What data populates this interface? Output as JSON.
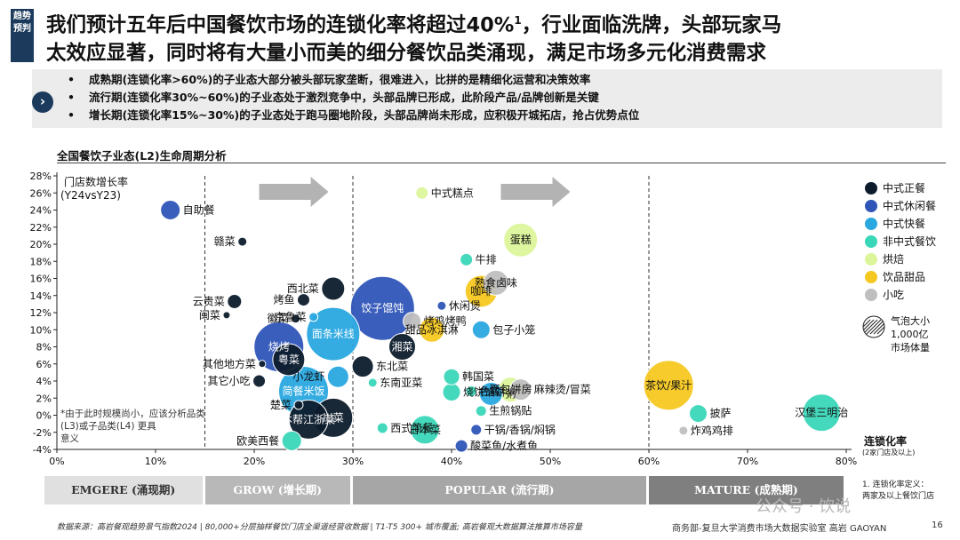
{
  "header": {
    "tag": "趋势预判",
    "title_line1": "我们预计五年后中国餐饮市场的连锁化率将超过40%",
    "title_sup": "1",
    "title_line1_tail": "，行业面临洗牌，头部玩家马",
    "title_line2": "太效应显著，同时将有大量小而美的细分餐饮品类涌现，满足市场多元化消费需求"
  },
  "bullets": [
    "成熟期(连锁化率>60%)的子业态大部分被头部玩家垄断，很难进入，比拼的是精细化运营和决策效率",
    "流行期(连锁化率30%~60%)的子业态处于激烈竞争中，头部品牌已形成，此阶段产品/品牌创新是关键",
    "增长期(连锁化率15%~30%)的子业态处于跑马圈地阶段，头部品牌尚未形成，应积极开城拓店，抢占优势点位"
  ],
  "chart_title": "全国餐饮子业态(L2)生命周期分析",
  "phases": [
    {
      "label": "EMGERE (涌现期)",
      "color": "#e0e0e0",
      "text_color": "#333333"
    },
    {
      "label": "GROW (增长期)",
      "color": "#b8b8b8",
      "text_color": "#ffffff"
    },
    {
      "label": "POPULAR (流行期)",
      "color": "#a6a6a6",
      "text_color": "#ffffff"
    },
    {
      "label": "MATURE (成熟期)",
      "color": "#7f7f7f",
      "text_color": "#ffffff"
    }
  ],
  "footer": {
    "source": "数据来源：高岩餐观趋势景气指数2024 | 80,000+分层抽样餐饮门店全渠道经营收数据 | T1-T5 300+ 城市覆盖; 高岩餐观大数据算法推算市场容量",
    "org": "商务部-复旦大学消费市场大数据实验室  高岩 GAOYAN",
    "page": "16",
    "def_note_1": "1. 连锁化率定义：",
    "def_note_2": "两家及以上餐饮门店",
    "watermark": "公众号 · 饮说"
  },
  "chart_data": {
    "type": "scatter",
    "title": "全国餐饮子业态(L2)生命周期分析",
    "xlabel": "连锁化率",
    "xlabel_sub": "(2家门店及以上)",
    "ylabel_1": "门店数增长率",
    "ylabel_2": "(Y24vsY23)",
    "xlim": [
      0,
      80
    ],
    "ylim": [
      -4,
      28
    ],
    "xticks": [
      "0%",
      "10%",
      "20%",
      "30%",
      "40%",
      "50%",
      "60%",
      "70%",
      "80%"
    ],
    "yticks": [
      "-4%",
      "-2%",
      "0%",
      "2%",
      "4%",
      "6%",
      "8%",
      "10%",
      "12%",
      "14%",
      "16%",
      "18%",
      "20%",
      "22%",
      "24%",
      "26%",
      "28%"
    ],
    "phase_lines_x": [
      15,
      30,
      60
    ],
    "size_legend": "气泡大小 1,000亿 市场体量",
    "footnote": "*由于此时规模尚小，应该分析品类(L3)或子品类(L4) 更具意义",
    "categories": [
      {
        "name": "中式正餐",
        "color": "#0d1c2c"
      },
      {
        "name": "中式休闲餐",
        "color": "#2f55b8"
      },
      {
        "name": "中式快餐",
        "color": "#29a8e0"
      },
      {
        "name": "非中式餐饮",
        "color": "#3ad6b8"
      },
      {
        "name": "烘焙",
        "color": "#dcf59a"
      },
      {
        "name": "饮品甜品",
        "color": "#f5c820"
      },
      {
        "name": "小吃",
        "color": "#bfbfbf"
      }
    ],
    "points": [
      {
        "label": "自助餐",
        "cat": 1,
        "x": 11.5,
        "y": 24,
        "r": 11
      },
      {
        "label": "中式糕点",
        "cat": 4,
        "x": 37,
        "y": 26,
        "r": 7
      },
      {
        "label": "蛋糕",
        "cat": 4,
        "x": 47,
        "y": 20.5,
        "r": 19
      },
      {
        "label": "牛排",
        "cat": 3,
        "x": 41.5,
        "y": 18.2,
        "r": 7
      },
      {
        "label": "休闲煲",
        "cat": 1,
        "x": 39,
        "y": 12.8,
        "r": 5
      },
      {
        "label": "饺子馄饨",
        "cat": 1,
        "x": 33,
        "y": 12.5,
        "r": 36
      },
      {
        "label": "烤鸡烤鸭",
        "cat": 6,
        "x": 36,
        "y": 11,
        "r": 10
      },
      {
        "label": "熟食卤味",
        "cat": 6,
        "x": 44.5,
        "y": 15.5,
        "r": 14
      },
      {
        "label": "咖啡",
        "cat": 5,
        "x": 43,
        "y": 14.5,
        "r": 18
      },
      {
        "label": "包子小笼",
        "cat": 2,
        "x": 43,
        "y": 10,
        "r": 10
      },
      {
        "label": "甜品冰淇淋",
        "cat": 5,
        "x": 38,
        "y": 10,
        "r": 14
      },
      {
        "label": "湘菜",
        "cat": 0,
        "x": 35,
        "y": 8,
        "r": 15
      },
      {
        "label": "东北菜",
        "cat": 0,
        "x": 31,
        "y": 5.7,
        "r": 12
      },
      {
        "label": "韩国菜",
        "cat": 3,
        "x": 40,
        "y": 4.5,
        "r": 9
      },
      {
        "label": "色拉",
        "cat": 3,
        "x": 42,
        "y": 2.8,
        "r": 6
      },
      {
        "label": "粥",
        "cat": 2,
        "x": 44,
        "y": 2.5,
        "r": 13
      },
      {
        "label": "面包饼房",
        "cat": 4,
        "x": 46,
        "y": 3,
        "r": 14
      },
      {
        "label": "麻辣烫/冒菜",
        "cat": 6,
        "x": 47,
        "y": 3,
        "r": 12
      },
      {
        "label": "东南亚菜",
        "cat": 3,
        "x": 32,
        "y": 3.8,
        "r": 5
      },
      {
        "label": "烧饼馅饼",
        "cat": 3,
        "x": 40,
        "y": 2.7,
        "r": 10
      },
      {
        "label": "川菜",
        "cat": 0,
        "x": 28,
        "y": -0.3,
        "r": 22
      },
      {
        "label": "日本菜",
        "cat": 3,
        "x": 37.3,
        "y": -1.7,
        "r": 16
      },
      {
        "label": "生煎锅贴",
        "cat": 3,
        "x": 43,
        "y": 0.5,
        "r": 6
      },
      {
        "label": "干锅/香锅/焖锅",
        "cat": 1,
        "x": 42.5,
        "y": -1.7,
        "r": 6
      },
      {
        "label": "西式简餐",
        "cat": 3,
        "x": 33,
        "y": -1.5,
        "r": 6
      },
      {
        "label": "酸菜鱼/水煮鱼",
        "cat": 1,
        "x": 41,
        "y": -3.6,
        "r": 7
      },
      {
        "label": "本帮江浙菜",
        "cat": 0,
        "x": 25.5,
        "y": -0.5,
        "r": 22
      },
      {
        "label": "楚菜",
        "cat": 0,
        "x": 24.5,
        "y": 1.2,
        "r": 5
      },
      {
        "label": "欧美西餐",
        "cat": 3,
        "x": 23.8,
        "y": -3,
        "r": 11
      },
      {
        "label": "烤鱼",
        "cat": 0,
        "x": 25,
        "y": 13.5,
        "r": 7
      },
      {
        "label": "西北菜",
        "cat": 0,
        "x": 28,
        "y": 14.8,
        "r": 13
      },
      {
        "label": "京鲁菜",
        "cat": 2,
        "x": 26,
        "y": 11.5,
        "r": 5
      },
      {
        "label": "徽菜",
        "cat": 0,
        "x": 24.2,
        "y": 11.3,
        "r": 5
      },
      {
        "label": "面条米线",
        "cat": 2,
        "x": 28,
        "y": 9.5,
        "r": 30
      },
      {
        "label": "烧烤",
        "cat": 1,
        "x": 22.5,
        "y": 8,
        "r": 28
      },
      {
        "label": "粤菜",
        "cat": 0,
        "x": 23.5,
        "y": 6.5,
        "r": 18
      },
      {
        "label": "小龙虾",
        "cat": 2,
        "x": 28.5,
        "y": 4.5,
        "r": 12
      },
      {
        "label": "简餐米饭",
        "cat": 2,
        "x": 25,
        "y": 2.8,
        "r": 28
      },
      {
        "label": "云贵菜",
        "cat": 0,
        "x": 18,
        "y": 13.3,
        "r": 8
      },
      {
        "label": "闽菜",
        "cat": 0,
        "x": 17.2,
        "y": 11.7,
        "r": 4
      },
      {
        "label": "赣菜",
        "cat": 0,
        "x": 18.8,
        "y": 20.3,
        "r": 5
      },
      {
        "label": "其他地方菜",
        "cat": 0,
        "x": 20.8,
        "y": 6,
        "r": 4
      },
      {
        "label": "其它小吃",
        "cat": 0,
        "x": 20.5,
        "y": 4,
        "r": 7
      },
      {
        "label": "茶饮/果汁",
        "cat": 5,
        "x": 62,
        "y": 3.5,
        "r": 28
      },
      {
        "label": "披萨",
        "cat": 3,
        "x": 65,
        "y": 0.2,
        "r": 10
      },
      {
        "label": "炸鸡鸡排",
        "cat": 6,
        "x": 63.5,
        "y": -1.8,
        "r": 5
      },
      {
        "label": "汉堡三明治",
        "cat": 3,
        "x": 77.5,
        "y": 0.3,
        "r": 21
      }
    ]
  }
}
